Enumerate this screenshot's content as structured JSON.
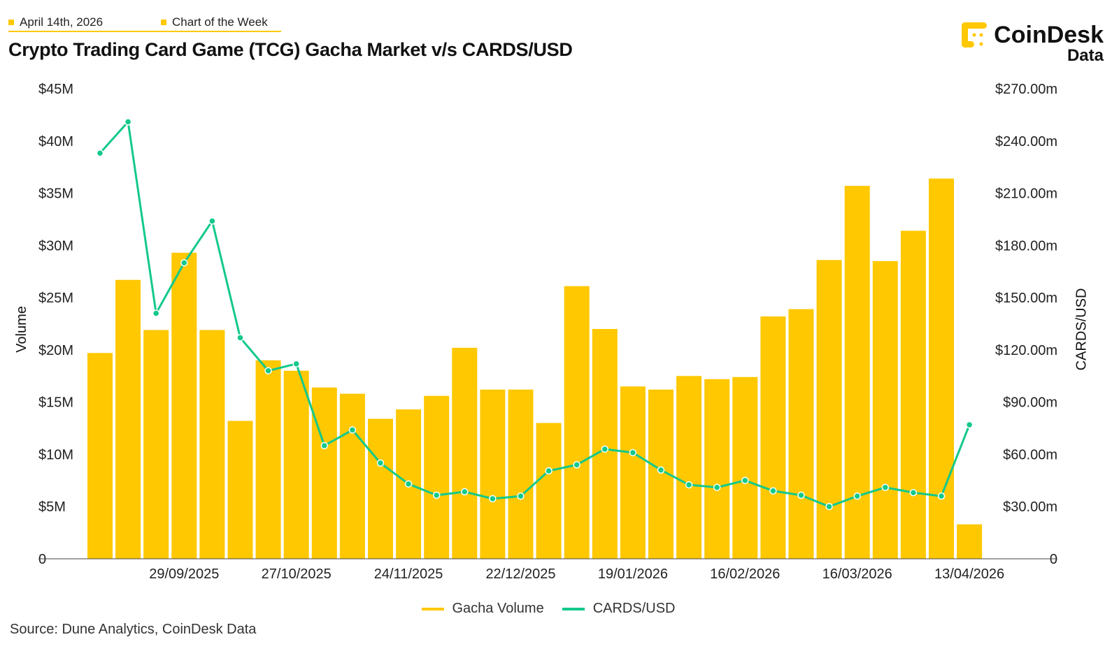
{
  "header": {
    "date": "April 14th, 2026",
    "section": "Chart of the Week",
    "logo_text": "CoinDesk",
    "logo_sub": "Data"
  },
  "source": "Source: Dune Analytics, CoinDesk Data",
  "colors": {
    "volume": "#ffc800",
    "price": "#13c98a",
    "accent": "#ffc800"
  },
  "chart_data": {
    "type": "bar+line",
    "title": "Crypto Trading Card Game (TCG) Gacha Market v/s CARDS/USD",
    "ylabel": "Volume",
    "y2label": "CARDS/USD",
    "ylim": [
      0,
      45
    ],
    "y2lim": [
      0,
      270
    ],
    "yticks": [
      "0",
      "$5M",
      "$10M",
      "$15M",
      "$20M",
      "$25M",
      "$30M",
      "$35M",
      "$40M",
      "$45M"
    ],
    "y2ticks": [
      "0",
      "$30.00m",
      "$60.00m",
      "$90.00m",
      "$120.00m",
      "$150.00m",
      "$180.00m",
      "$210.00m",
      "$240.00m",
      "$270.00m"
    ],
    "xticks": [
      "29/09/2025",
      "27/10/2025",
      "24/11/2025",
      "22/12/2025",
      "19/01/2026",
      "16/02/2026",
      "16/03/2026",
      "13/04/2026"
    ],
    "xtick_index": [
      3,
      7,
      11,
      15,
      19,
      23,
      27,
      31
    ],
    "grid": false,
    "legend_position": "bottom",
    "series": [
      {
        "name": "Gacha Volume",
        "type": "bar",
        "axis": "left",
        "unit": "USD millions",
        "values": [
          19.7,
          26.7,
          21.9,
          29.3,
          21.9,
          13.2,
          19.0,
          18.0,
          16.4,
          15.8,
          13.4,
          14.3,
          15.6,
          20.2,
          16.2,
          16.2,
          13.0,
          26.1,
          22.0,
          16.5,
          16.2,
          17.5,
          17.2,
          17.4,
          23.2,
          23.9,
          28.6,
          35.7,
          28.5,
          31.4,
          36.4,
          3.3
        ]
      },
      {
        "name": "CARDS/USD",
        "type": "line",
        "axis": "right",
        "unit": "USD millions",
        "values": [
          233,
          251,
          141,
          170,
          194,
          127,
          108,
          112,
          65,
          74,
          55,
          43,
          36.5,
          38.5,
          34.5,
          36,
          50.5,
          54,
          63,
          61,
          51,
          42.5,
          41,
          45,
          39,
          36.5,
          30,
          36,
          41,
          38,
          36,
          77
        ]
      }
    ]
  }
}
